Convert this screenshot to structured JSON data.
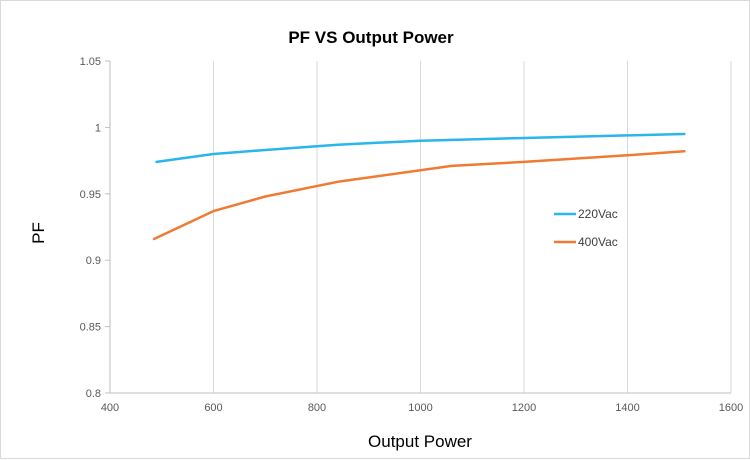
{
  "chart_data": {
    "type": "line",
    "title": "PF VS Output Power",
    "xlabel": "Output Power",
    "ylabel": "PF",
    "xlim": [
      400,
      1600
    ],
    "ylim": [
      0.8,
      1.05
    ],
    "x_ticks": [
      "400",
      "600",
      "800",
      "1000",
      "1200",
      "1400",
      "1600"
    ],
    "y_ticks": [
      "0.8",
      "0.85",
      "0.9",
      "0.95",
      "1",
      "1.05"
    ],
    "grid": "vertical",
    "legend_position": "right",
    "series": [
      {
        "name": "220Vac",
        "color": "#29b6ec",
        "x": [
          490,
          600,
          700,
          840,
          1000,
          1200,
          1400,
          1510
        ],
        "y": [
          0.974,
          0.98,
          0.983,
          0.987,
          0.99,
          0.992,
          0.994,
          0.995
        ]
      },
      {
        "name": "400Vac",
        "color": "#ef7b32",
        "x": [
          485,
          600,
          700,
          840,
          1060,
          1200,
          1400,
          1510
        ],
        "y": [
          0.916,
          0.937,
          0.948,
          0.959,
          0.971,
          0.974,
          0.979,
          0.982
        ]
      }
    ]
  }
}
